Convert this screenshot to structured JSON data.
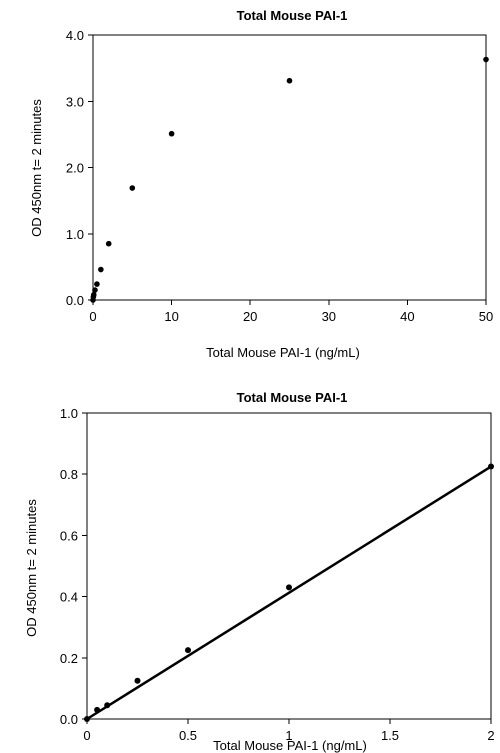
{
  "chart_data": [
    {
      "type": "scatter",
      "title": "Total Mouse PAI-1",
      "xlabel": "Total Mouse PAI-1 (ng/mL)",
      "ylabel": "OD 450nm t= 2 minutes",
      "xlim": [
        0,
        50
      ],
      "ylim": [
        0,
        4
      ],
      "x_ticks": [
        0,
        10,
        20,
        30,
        40,
        50
      ],
      "x_tick_labels": [
        "0",
        "10",
        "20",
        "30",
        "40",
        "50"
      ],
      "y_ticks": [
        0,
        1,
        2,
        3,
        4
      ],
      "y_tick_labels": [
        "0.0",
        "1.0",
        "2.0",
        "3.0",
        "4.0"
      ],
      "grid": false,
      "legend": "none",
      "series": [
        {
          "x": [
            0,
            0.05,
            0.1,
            0.25,
            0.5,
            1,
            2,
            5,
            10,
            25,
            50
          ],
          "y": [
            0.0,
            0.05,
            0.08,
            0.15,
            0.24,
            0.46,
            0.85,
            1.69,
            2.51,
            3.31,
            3.63
          ]
        }
      ]
    },
    {
      "type": "scatter",
      "title": "Total Mouse PAI-1",
      "xlabel": "Total Mouse PAI-1 (ng/mL)",
      "ylabel": "OD 450nm t= 2 minutes",
      "xlim": [
        0,
        2
      ],
      "ylim": [
        0,
        1
      ],
      "x_ticks": [
        0,
        0.5,
        1,
        1.5,
        2
      ],
      "x_tick_labels": [
        "0",
        "0.5",
        "1",
        "1.5",
        "2"
      ],
      "y_ticks": [
        0,
        0.2,
        0.4,
        0.6,
        0.8,
        1.0
      ],
      "y_tick_labels": [
        "0.0",
        "0.2",
        "0.4",
        "0.6",
        "0.8",
        "1.0"
      ],
      "grid": false,
      "legend": "none",
      "series": [
        {
          "x": [
            0,
            0.05,
            0.1,
            0.25,
            0.5,
            1,
            2
          ],
          "y": [
            0.0,
            0.03,
            0.045,
            0.125,
            0.225,
            0.43,
            0.825
          ]
        }
      ],
      "trendline": {
        "type": "linear",
        "x": [
          0,
          2
        ],
        "y": [
          0.0,
          0.825
        ]
      }
    }
  ]
}
